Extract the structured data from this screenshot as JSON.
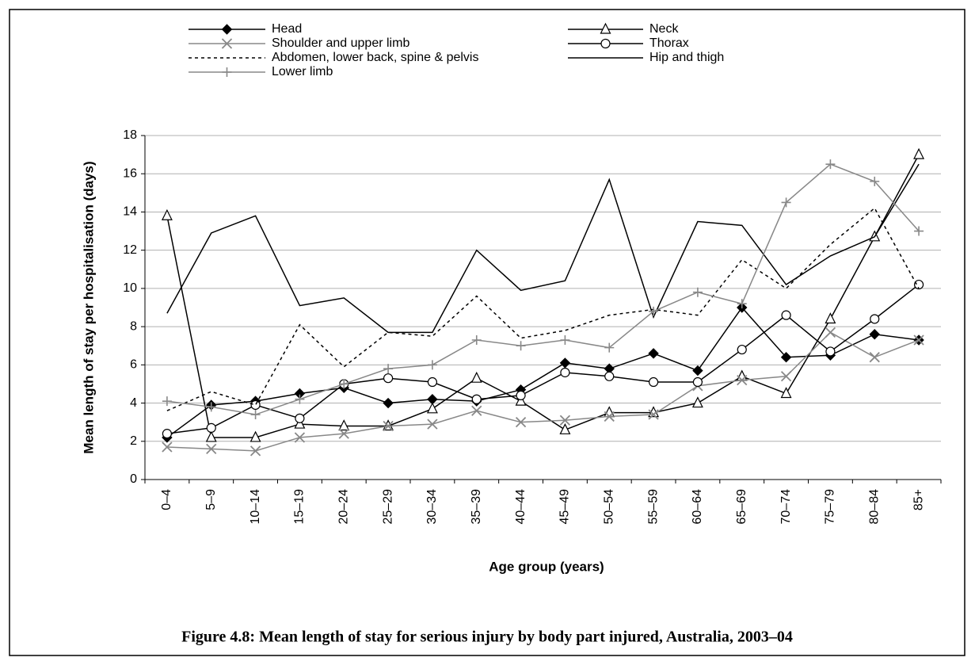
{
  "chart_data": {
    "type": "line",
    "title": "Figure 4.8: Mean length of stay for serious injury by body part injured, Australia, 2003–04",
    "xlabel": "Age group (years)",
    "ylabel": "Mean length of stay per hospitalisation (days)",
    "categories": [
      "0–4",
      "5–9",
      "10–14",
      "15–19",
      "20–24",
      "25–29",
      "30–34",
      "35–39",
      "40–44",
      "45–49",
      "50–54",
      "55–59",
      "60–64",
      "65–69",
      "70–74",
      "75–79",
      "80–84",
      "85+"
    ],
    "ylim": [
      0,
      18
    ],
    "yticks": [
      0,
      2,
      4,
      6,
      8,
      10,
      12,
      14,
      16,
      18
    ],
    "grid": true,
    "series": [
      {
        "name": "Head",
        "color": "#000000",
        "marker": "diamond",
        "style": "solid",
        "values": [
          2.2,
          3.9,
          4.1,
          4.5,
          4.8,
          4.0,
          4.2,
          4.1,
          4.7,
          6.1,
          5.8,
          6.6,
          5.7,
          9.0,
          6.4,
          6.5,
          7.6,
          7.3
        ]
      },
      {
        "name": "Neck",
        "color": "#000000",
        "marker": "triangle",
        "style": "solid",
        "values": [
          13.8,
          2.2,
          2.2,
          2.9,
          2.8,
          2.8,
          3.7,
          5.3,
          4.1,
          2.6,
          3.5,
          3.5,
          4.0,
          5.4,
          4.5,
          8.4,
          12.7,
          17.0
        ]
      },
      {
        "name": "Shoulder and upper limb",
        "color": "#888888",
        "marker": "x",
        "style": "solid",
        "values": [
          1.7,
          1.6,
          1.5,
          2.2,
          2.4,
          2.8,
          2.9,
          3.6,
          3.0,
          3.1,
          3.3,
          3.4,
          4.9,
          5.2,
          5.4,
          7.7,
          6.4,
          7.3
        ]
      },
      {
        "name": "Thorax",
        "color": "#000000",
        "marker": "circle",
        "style": "solid",
        "values": [
          2.4,
          2.7,
          3.9,
          3.2,
          5.0,
          5.3,
          5.1,
          4.2,
          4.4,
          5.6,
          5.4,
          5.1,
          5.1,
          6.8,
          8.6,
          6.7,
          8.4,
          10.2
        ]
      },
      {
        "name": "Abdomen, lower back, spine & pelvis",
        "color": "#000000",
        "marker": "none",
        "style": "dotted",
        "values": [
          3.6,
          4.6,
          3.9,
          8.1,
          5.9,
          7.7,
          7.5,
          9.6,
          7.4,
          7.8,
          8.6,
          8.9,
          8.6,
          11.5,
          10.0,
          12.3,
          14.2,
          10.0
        ]
      },
      {
        "name": "Hip and thigh",
        "color": "#000000",
        "marker": "none",
        "style": "solid",
        "values": [
          8.7,
          12.9,
          13.8,
          9.1,
          9.5,
          7.7,
          7.7,
          12.0,
          9.9,
          10.4,
          15.7,
          8.5,
          13.5,
          13.3,
          10.2,
          11.7,
          12.7,
          16.5
        ]
      },
      {
        "name": "Lower limb",
        "color": "#888888",
        "marker": "plus",
        "style": "solid",
        "values": [
          4.1,
          3.8,
          3.4,
          4.2,
          5.0,
          5.8,
          6.0,
          7.3,
          7.0,
          7.3,
          6.9,
          8.8,
          9.8,
          9.2,
          14.5,
          16.5,
          15.6,
          13.0
        ]
      }
    ]
  }
}
